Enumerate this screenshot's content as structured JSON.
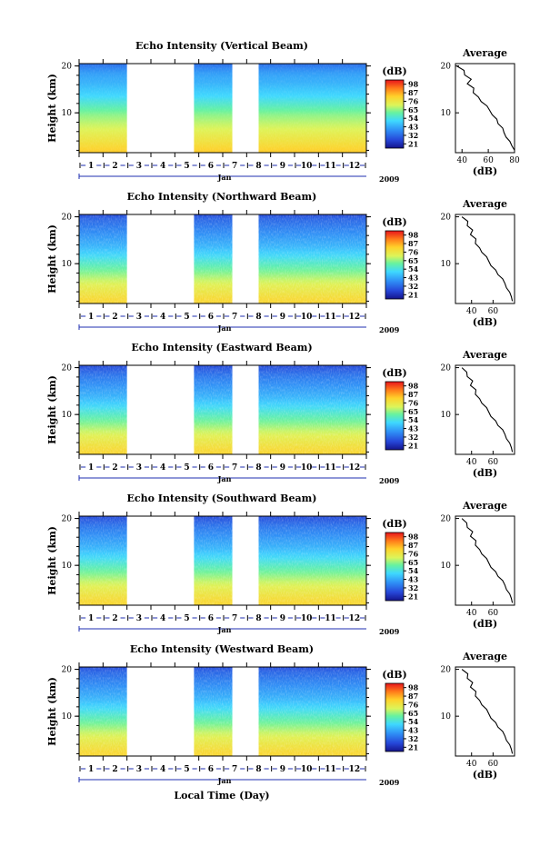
{
  "chart_data": {
    "type": "heatmap",
    "panels": [
      {
        "id": "vertical",
        "title": "Echo Intensity (Vertical Beam)",
        "avg_min": 40,
        "profile_dB": [
          36,
          40,
          43,
          45,
          46,
          48,
          50,
          52,
          55,
          58,
          61,
          64,
          66,
          68,
          70,
          72,
          74,
          76,
          78,
          80
        ]
      },
      {
        "id": "northward",
        "title": "Echo Intensity (Northward Beam)",
        "avg_min": 30,
        "profile_dB": [
          31,
          35,
          37,
          39,
          41,
          43,
          45,
          47,
          50,
          53,
          56,
          59,
          62,
          65,
          68,
          71,
          73,
          75,
          77,
          78
        ]
      },
      {
        "id": "eastward",
        "title": "Echo Intensity (Eastward Beam)",
        "avg_min": 30,
        "profile_dB": [
          31,
          34,
          37,
          39,
          41,
          43,
          45,
          47,
          50,
          53,
          56,
          59,
          62,
          65,
          68,
          71,
          73,
          75,
          77,
          78
        ]
      },
      {
        "id": "southward",
        "title": "Echo Intensity (Southward Beam)",
        "avg_min": 30,
        "profile_dB": [
          31,
          34,
          37,
          39,
          41,
          43,
          45,
          47,
          50,
          53,
          56,
          59,
          62,
          65,
          68,
          71,
          73,
          75,
          77,
          78
        ]
      },
      {
        "id": "westward",
        "title": "Echo Intensity (Westward Beam)",
        "avg_min": 30,
        "profile_dB": [
          31,
          35,
          37,
          39,
          41,
          43,
          45,
          47,
          50,
          53,
          56,
          59,
          62,
          65,
          68,
          71,
          73,
          75,
          77,
          78
        ]
      }
    ],
    "ylabel": "Height (km)",
    "ylim_km": [
      1.5,
      20.5
    ],
    "y_ticks_km": [
      10,
      20
    ],
    "x_day_labels": [
      "1",
      "2",
      "3",
      "4",
      "5",
      "6",
      "7",
      "8",
      "9",
      "10",
      "11",
      "12"
    ],
    "x_month_label": "Jan",
    "x_year_label": "2009",
    "xlabel": "Local Time (Day)",
    "xlim_day": [
      0.5,
      12.5
    ],
    "data_gaps_day": [
      [
        2.5,
        5.3
      ],
      [
        6.9,
        8.0
      ]
    ],
    "colorbar_label": "(dB)",
    "colorbar_ticks": [
      "21",
      "32",
      "43",
      "54",
      "65",
      "76",
      "87",
      "98"
    ],
    "colorbar_range_dB": [
      21,
      98
    ],
    "avg_title": "Average",
    "avg_xlabel": "(dB)",
    "avg_ticks_top": [
      "40",
      "60",
      "80"
    ],
    "avg_ticks": [
      "40",
      "60"
    ],
    "avg_xlim": [
      35,
      80
    ],
    "colors": {
      "low": "#1a1aa0",
      "mid": "#3fd8ff",
      "high": "#e8141c"
    }
  }
}
